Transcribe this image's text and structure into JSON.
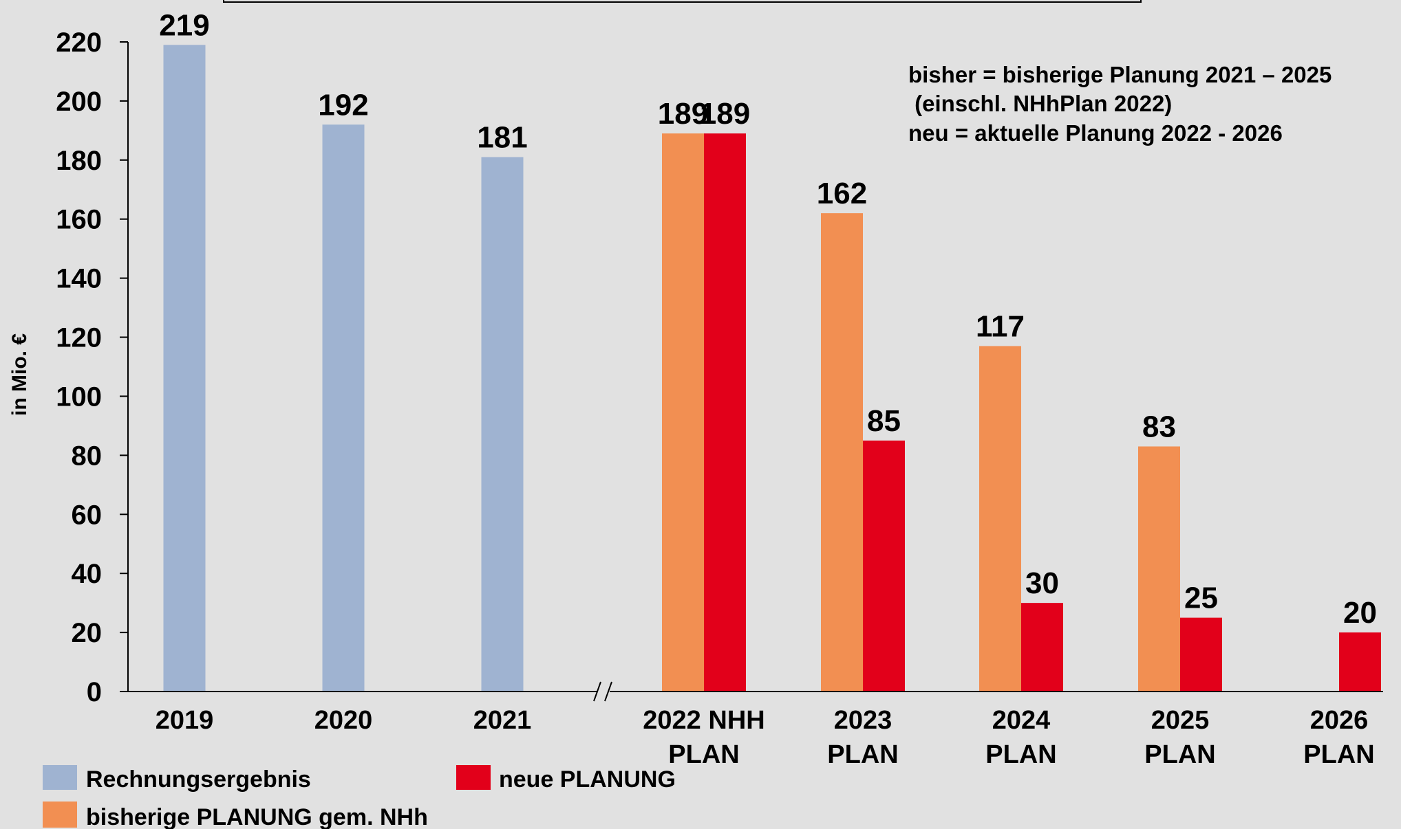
{
  "chart_data": {
    "type": "bar",
    "title": "",
    "xlabel": "",
    "ylabel": "in Mio. €",
    "ylim": [
      0,
      220
    ],
    "y_ticks": [
      0,
      20,
      40,
      60,
      80,
      100,
      120,
      140,
      160,
      180,
      200,
      220
    ],
    "grid": false,
    "axis_break_marker": "//",
    "categories": [
      [
        "2019"
      ],
      [
        "2020"
      ],
      [
        "2021"
      ],
      [
        "2022 NHH",
        "PLAN"
      ],
      [
        "2023",
        "PLAN"
      ],
      [
        "2024",
        "PLAN"
      ],
      [
        "2025",
        "PLAN"
      ],
      [
        "2026",
        "PLAN"
      ]
    ],
    "series": [
      {
        "name": "Rechnungsergebnis",
        "color": "#9fb3d1",
        "values": [
          219,
          192,
          181,
          null,
          null,
          null,
          null,
          null
        ]
      },
      {
        "name": "bisherige PLANUNG gem. NHh",
        "color": "#f28f52",
        "values": [
          null,
          null,
          null,
          189,
          162,
          117,
          83,
          null
        ]
      },
      {
        "name": "neue PLANUNG",
        "color": "#e2001a",
        "values": [
          null,
          null,
          null,
          189,
          85,
          30,
          25,
          20
        ]
      }
    ],
    "annotation": [
      "bisher = bisherige Planung 2021 – 2025",
      " (einschl. NHhPlan 2022)",
      "neu = aktuelle Planung 2022 - 2026"
    ],
    "legend_position": "bottom-left"
  }
}
